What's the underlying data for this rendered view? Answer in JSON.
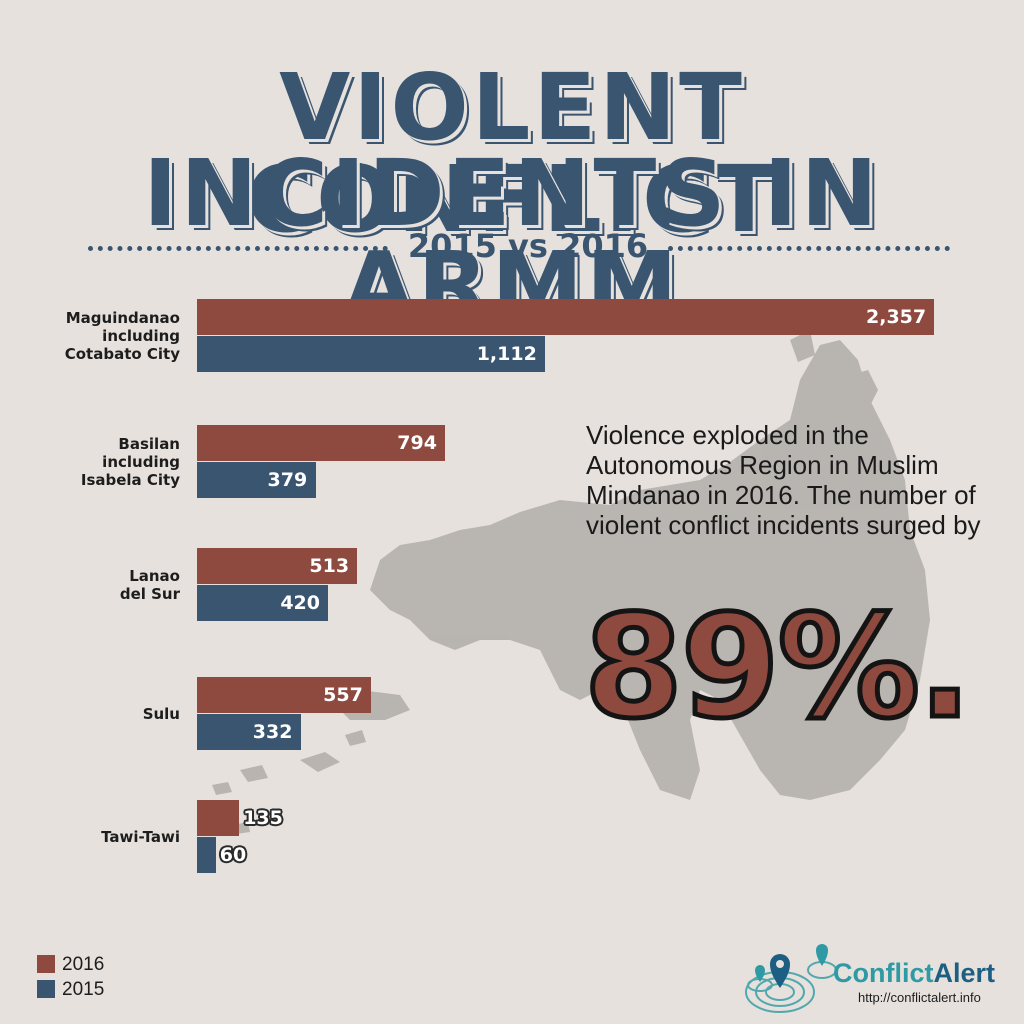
{
  "header": {
    "title_line1": "VIOLENT CONFLICT",
    "title_line2": "INCIDENTS IN ARMM",
    "subtitle": "2015 vs 2016"
  },
  "annotation": {
    "text": "Violence exploded in the Autonomous Region in Muslim Mindanao in 2016. The number of violent conflict incidents surged by",
    "highlight": "89%."
  },
  "colors": {
    "2016": "#8f4a40",
    "2015": "#3a5570",
    "title": "#3a5570",
    "map": "#a4a09c"
  },
  "chart_data": {
    "type": "bar",
    "orientation": "horizontal",
    "categories": [
      "Maguindanao\nincluding\nCotabato City",
      "Basilan\nincluding\nIsabela City",
      "Lanao\ndel Sur",
      "Sulu",
      "Tawi-Tawi"
    ],
    "series": [
      {
        "name": "2016",
        "values": [
          2357,
          794,
          513,
          557,
          135
        ],
        "labels": [
          "2,357",
          "794",
          "513",
          "557",
          "135"
        ]
      },
      {
        "name": "2015",
        "values": [
          1112,
          379,
          420,
          332,
          60
        ],
        "labels": [
          "1,112",
          "379",
          "420",
          "332",
          "60"
        ]
      }
    ],
    "xlim": [
      0,
      2357
    ],
    "grid": false,
    "legend_position": "bottom-left"
  },
  "legend": [
    {
      "label": "2016"
    },
    {
      "label": "2015"
    }
  ],
  "branding": {
    "name_part1": "Conflict",
    "name_part2": "Alert",
    "url": "http://conflictalert.info"
  }
}
